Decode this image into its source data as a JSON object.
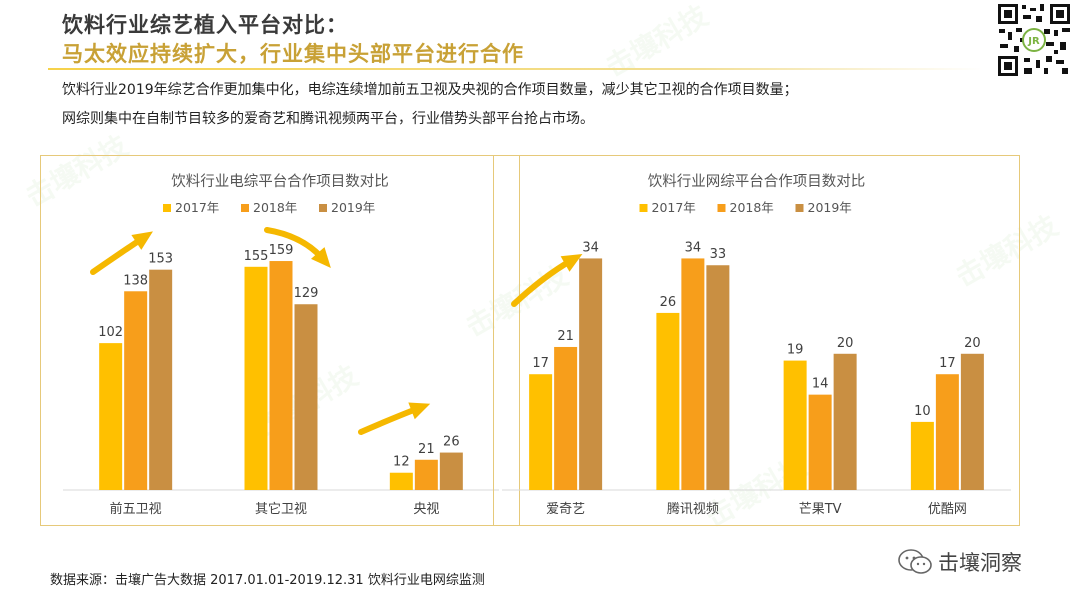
{
  "header": {
    "title": "饮料行业综艺植入平台对比：",
    "subtitle": "马太效应持续扩大，行业集中头部平台进行合作"
  },
  "description": {
    "line1": "饮料行业2019年综艺合作更加集中化，电综连续增加前五卫视及央视的合作项目数量，减少其它卫视的合作项目数量；",
    "line2": "网综则集中在自制节目较多的爱奇艺和腾讯视频两平台，行业借势头部平台抢占市场。"
  },
  "footer": {
    "source": "数据来源：击壤广告大数据 2017.01.01-2019.12.31  饮料行业电网综监测"
  },
  "brand": {
    "name": "击壤洞察",
    "icon": "wechat-icon"
  },
  "watermark": {
    "text": "击壤科技"
  },
  "colors": {
    "2017年": "#FFC000",
    "2018年": "#F79E1B",
    "2019年": "#C98F42",
    "arrow": "#F5B800",
    "panel_border": "#E6C97A"
  },
  "chart_data": [
    {
      "type": "bar",
      "title": "饮料行业电综平台合作项目数对比",
      "categories": [
        "前五卫视",
        "其它卫视",
        "央视"
      ],
      "series": [
        {
          "name": "2017年",
          "values": [
            102,
            155,
            12
          ]
        },
        {
          "name": "2018年",
          "values": [
            138,
            159,
            21
          ]
        },
        {
          "name": "2019年",
          "values": [
            153,
            129,
            26
          ]
        }
      ],
      "ylim": [
        0,
        175
      ],
      "legend": "top-center",
      "grid": false
    },
    {
      "type": "bar",
      "title": "饮料行业网综平台合作项目数对比",
      "categories": [
        "爱奇艺",
        "腾讯视频",
        "芒果TV",
        "优酷网"
      ],
      "series": [
        {
          "name": "2017年",
          "values": [
            17,
            26,
            19,
            10
          ]
        },
        {
          "name": "2018年",
          "values": [
            21,
            34,
            14,
            17
          ]
        },
        {
          "name": "2019年",
          "values": [
            34,
            33,
            20,
            20
          ]
        }
      ],
      "ylim": [
        0,
        37
      ],
      "legend": "top-center",
      "grid": false
    }
  ]
}
